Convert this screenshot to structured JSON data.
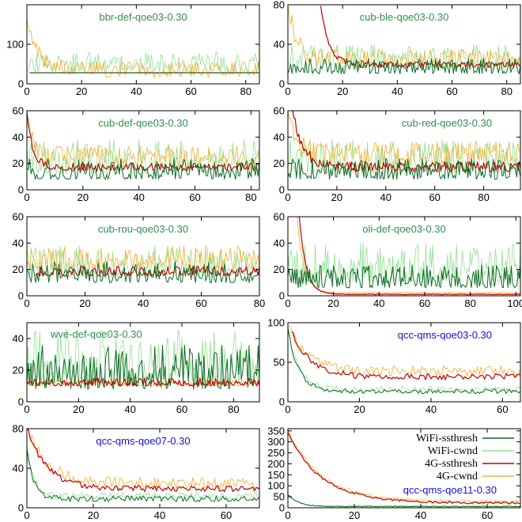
{
  "colors": {
    "wifi_ssthresh": "#0b6b23",
    "wifi_cwnd": "#8fe08f",
    "g4_ssthresh": "#c00000",
    "g4_cwnd": "#f0b43c",
    "title_green": "#2f8f4f",
    "title_blue": "#1010e0"
  },
  "legend": {
    "placement": "in bottom-right panel, upper right",
    "entries": [
      {
        "key": "wifi_ssthresh",
        "label": "WiFi-ssthresh"
      },
      {
        "key": "wifi_cwnd",
        "label": "WiFi-cwnd"
      },
      {
        "key": "g4_ssthresh",
        "label": "4G-ssthresh"
      },
      {
        "key": "g4_cwnd",
        "label": "4G-cwnd"
      }
    ]
  },
  "chart_data": [
    {
      "type": "line",
      "title": "bbr-def-qoe03-0.30",
      "title_color": "green",
      "title_pos": "top-center",
      "xlim": [
        0,
        85
      ],
      "ylim": [
        0,
        200
      ],
      "xticks": [
        0,
        20,
        40,
        60,
        80
      ],
      "yticks": [
        0,
        100
      ],
      "series": {
        "wifi_ssthresh": {
          "kind": "flat",
          "level": 28,
          "start": 1,
          "end": 85
        },
        "g4_ssthresh": {
          "kind": "flat",
          "level": 28,
          "start": 1,
          "end": 85
        },
        "wifi_cwnd": {
          "kind": "noise",
          "base": 30,
          "amp": 50,
          "seed": 11,
          "start": 0,
          "end": 85
        },
        "g4_cwnd": {
          "kind": "decay",
          "peak": 160,
          "plateau": 28,
          "tau": 4,
          "amp": 40,
          "seed": 12,
          "start": 0,
          "end": 85
        }
      }
    },
    {
      "type": "line",
      "title": "cub-ble-qoe03-0.30",
      "title_color": "green",
      "title_pos": "top-center",
      "xlim": [
        0,
        85
      ],
      "ylim": [
        0,
        80
      ],
      "xticks": [
        0,
        20,
        40,
        60,
        80
      ],
      "yticks": [
        0,
        40,
        80
      ],
      "series": {
        "wifi_ssthresh": {
          "kind": "noise",
          "base": 10,
          "amp": 16,
          "seed": 21,
          "start": 0,
          "end": 85
        },
        "wifi_cwnd": {
          "kind": "noise",
          "base": 14,
          "amp": 26,
          "seed": 22,
          "start": 0,
          "end": 85
        },
        "g4_ssthresh": {
          "kind": "decay",
          "peak": 80,
          "plateau": 18,
          "tau": 3,
          "amp": 6,
          "seed": 23,
          "start": 12,
          "end": 85
        },
        "g4_cwnd": {
          "kind": "decay",
          "peak": 80,
          "plateau": 22,
          "tau": 3,
          "amp": 18,
          "seed": 24,
          "start": 0,
          "end": 85
        }
      }
    },
    {
      "type": "line",
      "title": "cub-def-qoe03-0.30",
      "title_color": "green",
      "title_pos": "top-center",
      "xlim": [
        0,
        83
      ],
      "ylim": [
        0,
        60
      ],
      "xticks": [
        0,
        20,
        40,
        60,
        80
      ],
      "yticks": [
        0,
        20,
        40,
        60
      ],
      "series": {
        "wifi_ssthresh": {
          "kind": "noise",
          "base": 8,
          "amp": 16,
          "seed": 31,
          "start": 0,
          "end": 83
        },
        "wifi_cwnd": {
          "kind": "noise",
          "base": 12,
          "amp": 26,
          "seed": 32,
          "start": 0,
          "end": 83
        },
        "g4_ssthresh": {
          "kind": "decay",
          "peak": 60,
          "plateau": 16,
          "tau": 2,
          "amp": 6,
          "seed": 33,
          "start": 0,
          "end": 83
        },
        "g4_cwnd": {
          "kind": "decay",
          "peak": 60,
          "plateau": 22,
          "tau": 2,
          "amp": 16,
          "seed": 34,
          "start": 0,
          "end": 83
        }
      }
    },
    {
      "type": "line",
      "title": "cub-red-qoe03-0.30",
      "title_color": "green",
      "title_pos": "top-right",
      "xlim": [
        0,
        95
      ],
      "ylim": [
        0,
        60
      ],
      "xticks": [
        0,
        20,
        40,
        60,
        80
      ],
      "yticks": [
        0,
        20,
        40,
        60
      ],
      "series": {
        "wifi_ssthresh": {
          "kind": "noise",
          "base": 8,
          "amp": 16,
          "seed": 41,
          "start": 0,
          "end": 95
        },
        "wifi_cwnd": {
          "kind": "noise",
          "base": 12,
          "amp": 26,
          "seed": 42,
          "start": 0,
          "end": 95
        },
        "g4_ssthresh": {
          "kind": "decay",
          "peak": 60,
          "plateau": 16,
          "tau": 4,
          "amp": 8,
          "seed": 43,
          "start": 2,
          "end": 95
        },
        "g4_cwnd": {
          "kind": "decay",
          "peak": 60,
          "plateau": 24,
          "tau": 3,
          "amp": 18,
          "seed": 44,
          "start": 0,
          "end": 95
        }
      }
    },
    {
      "type": "line",
      "title": "cub-rou-qoe03-0.30",
      "title_color": "green",
      "title_pos": "top-center",
      "xlim": [
        0,
        80
      ],
      "ylim": [
        0,
        60
      ],
      "xticks": [
        0,
        20,
        40,
        60,
        80
      ],
      "yticks": [
        0,
        20,
        40,
        60
      ],
      "series": {
        "wifi_ssthresh": {
          "kind": "noise",
          "base": 10,
          "amp": 16,
          "seed": 51,
          "start": 0,
          "end": 80
        },
        "wifi_cwnd": {
          "kind": "noise",
          "base": 14,
          "amp": 24,
          "seed": 52,
          "start": 0,
          "end": 80
        },
        "g4_ssthresh": {
          "kind": "noise",
          "base": 15,
          "amp": 8,
          "seed": 53,
          "start": 3,
          "end": 80
        },
        "g4_cwnd": {
          "kind": "noise",
          "base": 20,
          "amp": 18,
          "seed": 54,
          "start": 0,
          "end": 80
        }
      }
    },
    {
      "type": "line",
      "title": "oli-def-qoe03-0.30",
      "title_color": "green",
      "title_pos": "top-center",
      "xlim": [
        0,
        102
      ],
      "ylim": [
        0,
        60
      ],
      "xticks": [
        0,
        20,
        40,
        60,
        80,
        100
      ],
      "yticks": [
        0,
        20,
        40,
        60
      ],
      "series": {
        "wifi_ssthresh": {
          "kind": "noise",
          "base": 6,
          "amp": 18,
          "seed": 61,
          "start": 0,
          "end": 102
        },
        "wifi_cwnd": {
          "kind": "noise",
          "base": 10,
          "amp": 30,
          "seed": 62,
          "start": 0,
          "end": 102
        },
        "g4_ssthresh": {
          "kind": "decay",
          "peak": 60,
          "plateau": 1,
          "tau": 3,
          "amp": 0.5,
          "seed": 63,
          "start": 5,
          "end": 102
        },
        "g4_cwnd": {
          "kind": "decay",
          "peak": 60,
          "plateau": 2,
          "tau": 3,
          "amp": 1,
          "seed": 64,
          "start": 4,
          "end": 102
        }
      }
    },
    {
      "type": "line",
      "title": "wve-def-qoe03-0.30",
      "title_color": "green",
      "title_pos": "top-left",
      "xlim": [
        0,
        90
      ],
      "ylim": [
        0,
        50
      ],
      "xticks": [
        0,
        20,
        40,
        60,
        80
      ],
      "yticks": [
        0,
        20,
        40
      ],
      "series": {
        "wifi_ssthresh": {
          "kind": "noise",
          "base": 8,
          "amp": 28,
          "seed": 71,
          "start": 0,
          "end": 90
        },
        "wifi_cwnd": {
          "kind": "noise",
          "base": 12,
          "amp": 34,
          "seed": 72,
          "start": 0,
          "end": 90
        },
        "g4_ssthresh": {
          "kind": "noise",
          "base": 10,
          "amp": 5,
          "seed": 73,
          "start": 0,
          "end": 90
        },
        "g4_cwnd": {
          "kind": "noise",
          "base": 10,
          "amp": 5,
          "seed": 74,
          "start": 0,
          "end": 90
        }
      }
    },
    {
      "type": "line",
      "title": "qcc-qms-qoe03-0.30",
      "title_color": "blue",
      "title_pos": "top-right",
      "xlim": [
        0,
        65
      ],
      "ylim": [
        0,
        100
      ],
      "xticks": [
        0,
        20,
        40,
        60
      ],
      "yticks": [
        0,
        50,
        100
      ],
      "series": {
        "wifi_ssthresh": {
          "kind": "decay",
          "peak": 90,
          "plateau": 12,
          "tau": 3,
          "amp": 6,
          "seed": 81,
          "start": 0,
          "end": 65
        },
        "wifi_cwnd": {
          "kind": "decay",
          "peak": 90,
          "plateau": 14,
          "tau": 3,
          "amp": 8,
          "seed": 82,
          "start": 0,
          "end": 65
        },
        "g4_ssthresh": {
          "kind": "decay",
          "peak": 90,
          "plateau": 30,
          "tau": 5,
          "amp": 8,
          "seed": 83,
          "start": 1,
          "end": 65
        },
        "g4_cwnd": {
          "kind": "decay",
          "peak": 95,
          "plateau": 36,
          "tau": 5,
          "amp": 14,
          "seed": 84,
          "start": 0,
          "end": 65
        }
      }
    },
    {
      "type": "line",
      "title": "qcc-qms-qoe07-0.30",
      "title_color": "blue",
      "title_pos": "top-center",
      "xlim": [
        0,
        70
      ],
      "ylim": [
        0,
        80
      ],
      "xticks": [
        0,
        20,
        40,
        60
      ],
      "yticks": [
        0,
        40,
        80
      ],
      "series": {
        "wifi_ssthresh": {
          "kind": "decay",
          "peak": 60,
          "plateau": 8,
          "tau": 2,
          "amp": 6,
          "seed": 91,
          "start": 0,
          "end": 70
        },
        "wifi_cwnd": {
          "kind": "decay",
          "peak": 60,
          "plateau": 10,
          "tau": 2,
          "amp": 8,
          "seed": 92,
          "start": 0,
          "end": 70
        },
        "g4_ssthresh": {
          "kind": "decay",
          "peak": 80,
          "plateau": 18,
          "tau": 6,
          "amp": 6,
          "seed": 93,
          "start": 0,
          "end": 70
        },
        "g4_cwnd": {
          "kind": "decay",
          "peak": 80,
          "plateau": 22,
          "tau": 6,
          "amp": 12,
          "seed": 94,
          "start": 0,
          "end": 70
        }
      }
    },
    {
      "type": "line",
      "title": "qcc-qms-qoe11-0.30",
      "title_color": "blue",
      "title_pos": "bottom-right",
      "xlim": [
        0,
        70
      ],
      "ylim": [
        0,
        360
      ],
      "xticks": [
        0,
        20,
        40,
        60
      ],
      "yticks": [
        0,
        50,
        100,
        150,
        200,
        250,
        300,
        350
      ],
      "series": {
        "wifi_ssthresh": {
          "kind": "decay",
          "peak": 60,
          "plateau": 5,
          "tau": 3,
          "amp": 4,
          "seed": 101,
          "start": 0,
          "end": 70
        },
        "wifi_cwnd": {
          "kind": "decay",
          "peak": 60,
          "plateau": 6,
          "tau": 3,
          "amp": 5,
          "seed": 102,
          "start": 0,
          "end": 70
        },
        "g4_ssthresh": {
          "kind": "decay",
          "peak": 340,
          "plateau": 20,
          "tau": 10,
          "amp": 10,
          "seed": 103,
          "start": 0,
          "end": 70
        },
        "g4_cwnd": {
          "kind": "decay",
          "peak": 350,
          "plateau": 24,
          "tau": 10,
          "amp": 16,
          "seed": 104,
          "start": 0,
          "end": 70
        }
      }
    }
  ]
}
